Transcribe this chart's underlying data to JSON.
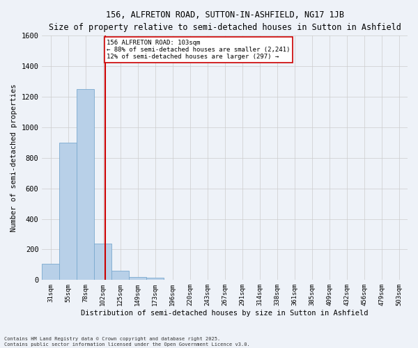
{
  "title": "156, ALFRETON ROAD, SUTTON-IN-ASHFIELD, NG17 1JB",
  "subtitle": "Size of property relative to semi-detached houses in Sutton in Ashfield",
  "xlabel": "Distribution of semi-detached houses by size in Sutton in Ashfield",
  "ylabel": "Number of semi-detached properties",
  "footer_line1": "Contains HM Land Registry data © Crown copyright and database right 2025.",
  "footer_line2": "Contains public sector information licensed under the Open Government Licence v3.0.",
  "annotation_title": "156 ALFRETON ROAD: 103sqm",
  "annotation_line1": "← 88% of semi-detached houses are smaller (2,241)",
  "annotation_line2": "12% of semi-detached houses are larger (297) →",
  "property_size": 103,
  "categories": [
    "31sqm",
    "55sqm",
    "78sqm",
    "102sqm",
    "125sqm",
    "149sqm",
    "173sqm",
    "196sqm",
    "220sqm",
    "243sqm",
    "267sqm",
    "291sqm",
    "314sqm",
    "338sqm",
    "361sqm",
    "385sqm",
    "409sqm",
    "432sqm",
    "456sqm",
    "479sqm",
    "503sqm"
  ],
  "bin_edges": [
    19.5,
    42.5,
    65.5,
    88.5,
    111.5,
    134.5,
    157.5,
    180.5,
    203.5,
    226.5,
    249.5,
    272.5,
    295.5,
    318.5,
    341.5,
    364.5,
    387.5,
    410.5,
    433.5,
    456.5,
    479.5,
    502.5
  ],
  "values": [
    105,
    900,
    1250,
    240,
    60,
    18,
    15,
    0,
    0,
    0,
    0,
    0,
    0,
    0,
    0,
    0,
    0,
    0,
    0,
    0,
    0
  ],
  "bar_color": "#b8d0e8",
  "bar_edge_color": "#7aaacf",
  "vline_color": "#cc0000",
  "annotation_box_color": "#cc0000",
  "annotation_bg": "#ffffff",
  "grid_color": "#cccccc",
  "background_color": "#eef2f8",
  "ylim": [
    0,
    1600
  ],
  "yticks": [
    0,
    200,
    400,
    600,
    800,
    1000,
    1200,
    1400,
    1600
  ]
}
